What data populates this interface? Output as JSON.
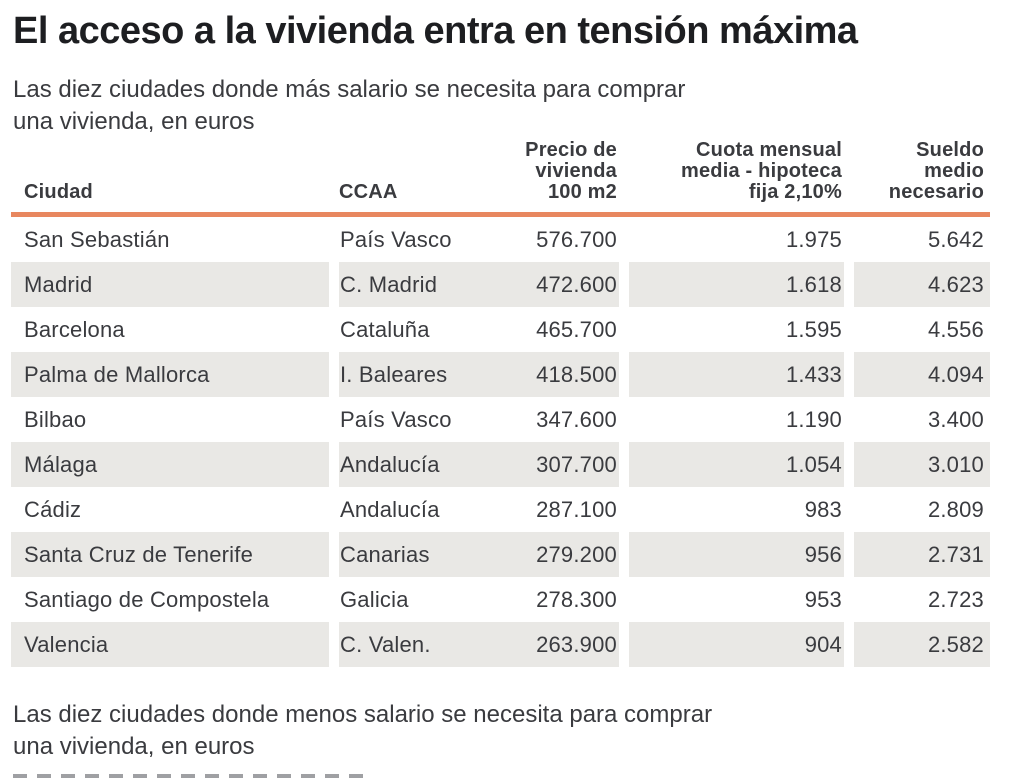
{
  "page": {
    "title": "El acceso a la vivienda entra en tensión máxima",
    "subtitle_top": {
      "line1": "Las diez ciudades donde más salario se necesita para comprar",
      "line2": "una vivienda, en euros"
    },
    "subtitle_bottom": {
      "line1": "Las diez ciudades donde menos salario se necesita para comprar",
      "line2": "una vivienda, en euros"
    }
  },
  "colors": {
    "accent_line": "#e8875f",
    "row_shade": "#e9e8e5",
    "title_text": "#1d1e21",
    "body_text": "#3a3b3f"
  },
  "table": {
    "columns": [
      {
        "key": "ciudad",
        "label": "Ciudad",
        "align": "left"
      },
      {
        "key": "ccaa",
        "label": "CCAA",
        "align": "left"
      },
      {
        "key": "precio",
        "label": "Precio de\nvivienda\n100 m2",
        "align": "right"
      },
      {
        "key": "cuota",
        "label": "Cuota mensual\nmedia - hipoteca\nfija 2,10%",
        "align": "right"
      },
      {
        "key": "sueldo",
        "label": "Sueldo\nmedio\nnecesario",
        "align": "right"
      }
    ],
    "rows": [
      {
        "ciudad": "San Sebastián",
        "ccaa": "País Vasco",
        "precio": "576.700",
        "cuota": "1.975",
        "sueldo": "5.642"
      },
      {
        "ciudad": "Madrid",
        "ccaa": "C. Madrid",
        "precio": "472.600",
        "cuota": "1.618",
        "sueldo": "4.623"
      },
      {
        "ciudad": "Barcelona",
        "ccaa": "Cataluña",
        "precio": "465.700",
        "cuota": "1.595",
        "sueldo": "4.556"
      },
      {
        "ciudad": "Palma de Mallorca",
        "ccaa": "I. Baleares",
        "precio": "418.500",
        "cuota": "1.433",
        "sueldo": "4.094"
      },
      {
        "ciudad": "Bilbao",
        "ccaa": "País Vasco",
        "precio": "347.600",
        "cuota": "1.190",
        "sueldo": "3.400"
      },
      {
        "ciudad": "Málaga",
        "ccaa": "Andalucía",
        "precio": "307.700",
        "cuota": "1.054",
        "sueldo": "3.010"
      },
      {
        "ciudad": "Cádiz",
        "ccaa": "Andalucía",
        "precio": "287.100",
        "cuota": "983",
        "sueldo": "2.809"
      },
      {
        "ciudad": "Santa Cruz de Tenerife",
        "ccaa": "Canarias",
        "precio": "279.200",
        "cuota": "956",
        "sueldo": "2.731"
      },
      {
        "ciudad": "Santiago de Compostela",
        "ccaa": "Galicia",
        "precio": "278.300",
        "cuota": "953",
        "sueldo": "2.723"
      },
      {
        "ciudad": "Valencia",
        "ccaa": "C. Valen.",
        "precio": "263.900",
        "cuota": "904",
        "sueldo": "2.582"
      }
    ]
  },
  "chart_data": {
    "type": "table",
    "title": "El acceso a la vivienda entra en tensión máxima",
    "subtitle": "Las diez ciudades donde más salario se necesita para comprar una vivienda, en euros",
    "columns": [
      "Ciudad",
      "CCAA",
      "Precio de vivienda 100 m2",
      "Cuota mensual media - hipoteca fija 2,10%",
      "Sueldo medio necesario"
    ],
    "rows": [
      [
        "San Sebastián",
        "País Vasco",
        576700,
        1975,
        5642
      ],
      [
        "Madrid",
        "C. Madrid",
        472600,
        1618,
        4623
      ],
      [
        "Barcelona",
        "Cataluña",
        465700,
        1595,
        4556
      ],
      [
        "Palma de Mallorca",
        "I. Baleares",
        418500,
        1433,
        4094
      ],
      [
        "Bilbao",
        "País Vasco",
        347600,
        1190,
        3400
      ],
      [
        "Málaga",
        "Andalucía",
        307700,
        1054,
        3010
      ],
      [
        "Cádiz",
        "Andalucía",
        287100,
        983,
        2809
      ],
      [
        "Santa Cruz de Tenerife",
        "Canarias",
        279200,
        956,
        2731
      ],
      [
        "Santiago de Compostela",
        "Galicia",
        278300,
        953,
        2723
      ],
      [
        "Valencia",
        "C. Valen.",
        263900,
        904,
        2582
      ]
    ],
    "footer": "Las diez ciudades donde menos salario se necesita para comprar una vivienda, en euros",
    "units": "euros"
  }
}
